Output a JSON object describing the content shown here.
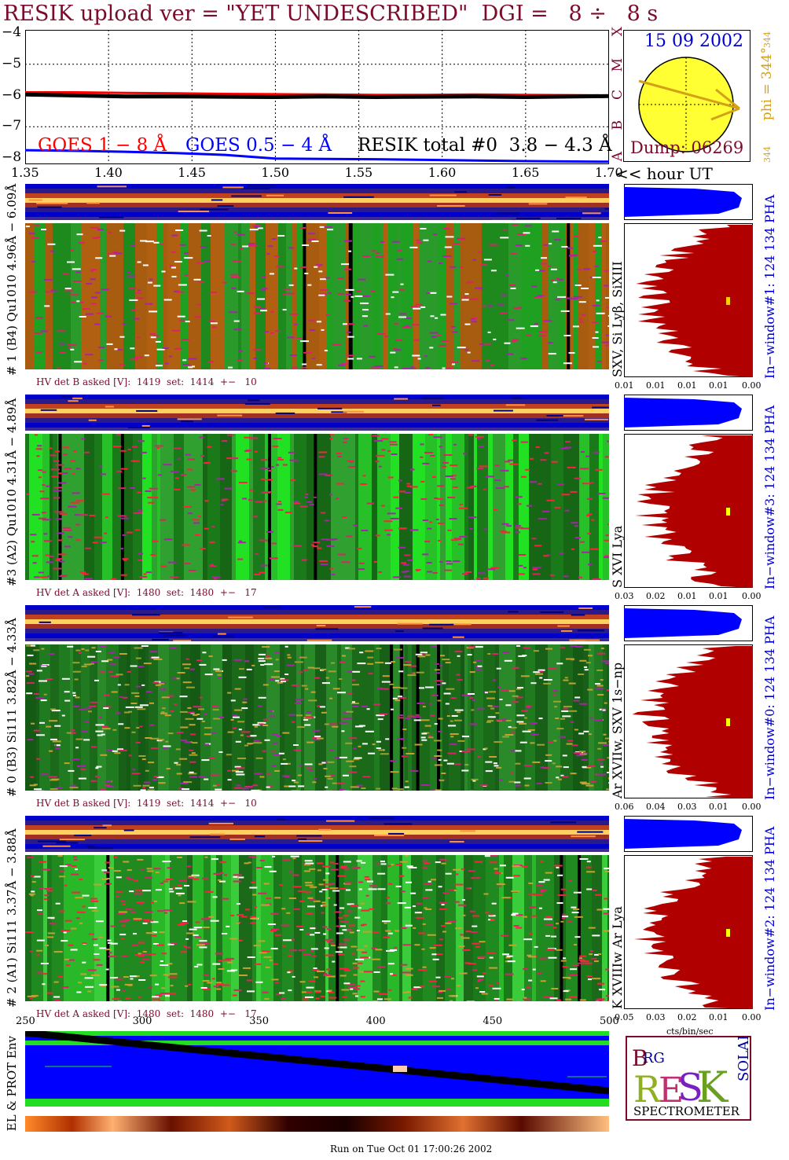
{
  "header": {
    "title": "RESIK upload ver = \"YET UNDESCRIBED\"  DGI =   8 ÷   8 s"
  },
  "lightcurve": {
    "y_ticks": [
      "−4",
      "−5",
      "−6",
      "−7",
      "−8"
    ],
    "goes_classes": [
      "A",
      "B",
      "C",
      "M",
      "X"
    ],
    "legend": {
      "goes_long": "GOES 1 − 8 Å",
      "goes_short": "GOES 0.5 − 4 Å",
      "resik_total": "RESIK total #0  3.8 − 4.3 Å"
    },
    "x_ticks": [
      "1.35",
      "1.40",
      "1.45",
      "1.50",
      "1.55",
      "1.60",
      "1.65",
      "1.70"
    ],
    "x_unit": "<< hour UT",
    "colors": {
      "goes_long": "#ff0000",
      "goes_short": "#0000ff",
      "resik": "#000000"
    }
  },
  "chart_data": {
    "type": "line",
    "x": [
      1.35,
      1.38,
      1.41,
      1.44,
      1.47,
      1.5,
      1.53,
      1.56,
      1.59,
      1.62,
      1.65,
      1.7
    ],
    "series": [
      {
        "values": [
          -5.9,
          -5.9,
          -5.92,
          -5.93,
          -5.95,
          -5.96,
          -5.97,
          -5.98,
          -5.98,
          -5.97,
          -5.98,
          -6.0
        ]
      },
      {
        "values": [
          -5.97,
          -6.0,
          -6.03,
          -6.03,
          -6.04,
          -6.05,
          -6.03,
          -6.05,
          -6.04,
          -6.03,
          -6.05,
          -6.02
        ]
      },
      {
        "values": [
          -7.75,
          -7.77,
          -7.8,
          -7.84,
          -7.9,
          -8.02,
          -8.03,
          -8.04,
          -8.06,
          -8.08,
          -8.1,
          -8.12
        ]
      }
    ],
    "xlim": [
      1.35,
      1.7
    ],
    "ylim": [
      -8.2,
      -3.9
    ],
    "xlabel": "<< hour UT"
  },
  "sun": {
    "date": "15 09 2002",
    "dump": "Dump: 06269",
    "phi": "phi = 344°",
    "phi_sup": "344",
    "phi_bottom": "344"
  },
  "panels": [
    {
      "label": "# 1 (B4) Qu1010 4.96Å − 6.09Å",
      "lines": "SXV, Si Lyβ, SiXIII",
      "hv": "HV det B asked [V]:  1419  set:  1414  +−   10",
      "pha": "In−window#1:  124 134 PHA",
      "pha_ticks": [
        "0.01",
        "0.01",
        "0.01",
        "0.01",
        "0.00"
      ]
    },
    {
      "label": "#3 (A2) Qu1010  4.31Å − 4.89Å",
      "lines": "S XVI Lya",
      "hv": "HV det A asked [V]:  1480  set:  1480  +−   17",
      "pha": "In−window#3:  124 134 PHA",
      "pha_ticks": [
        "0.03",
        "0.02",
        "0.01",
        "0.01",
        "0.00"
      ]
    },
    {
      "label": "# 0 (B3) Si111  3.82Å − 4.33Å",
      "lines": "Ar XVIIw, SXV 1s−np",
      "hv": "HV det B asked [V]:  1419  set:  1414  +−   10",
      "pha": "In−window#0:  124 134 PHA",
      "pha_ticks": [
        "0.06",
        "0.04",
        "0.03",
        "0.01",
        "0.00"
      ]
    },
    {
      "label": "# 2 (A1) Si111  3.37Å − 3.88Å",
      "lines": "K XVIIIw  Ar Lya",
      "hv": "HV det A asked [V]:  1480  set:  1480  +−   17",
      "pha": "In−window#2:  124 134 PHA",
      "pha_ticks": [
        "0.05",
        "0.03",
        "0.02",
        "0.01",
        "0.00"
      ]
    }
  ],
  "pha_unit": "cts/bin/sec",
  "bin_ticks": [
    "250",
    "300",
    "350",
    "400",
    "450",
    "500"
  ],
  "env": {
    "label": "EL & PROT Env"
  },
  "logo": {
    "text": "SPECTROMETER",
    "letters": "RESIK"
  },
  "footer": {
    "run": "Run on Tue Oct 01 17:00:26 2002"
  }
}
